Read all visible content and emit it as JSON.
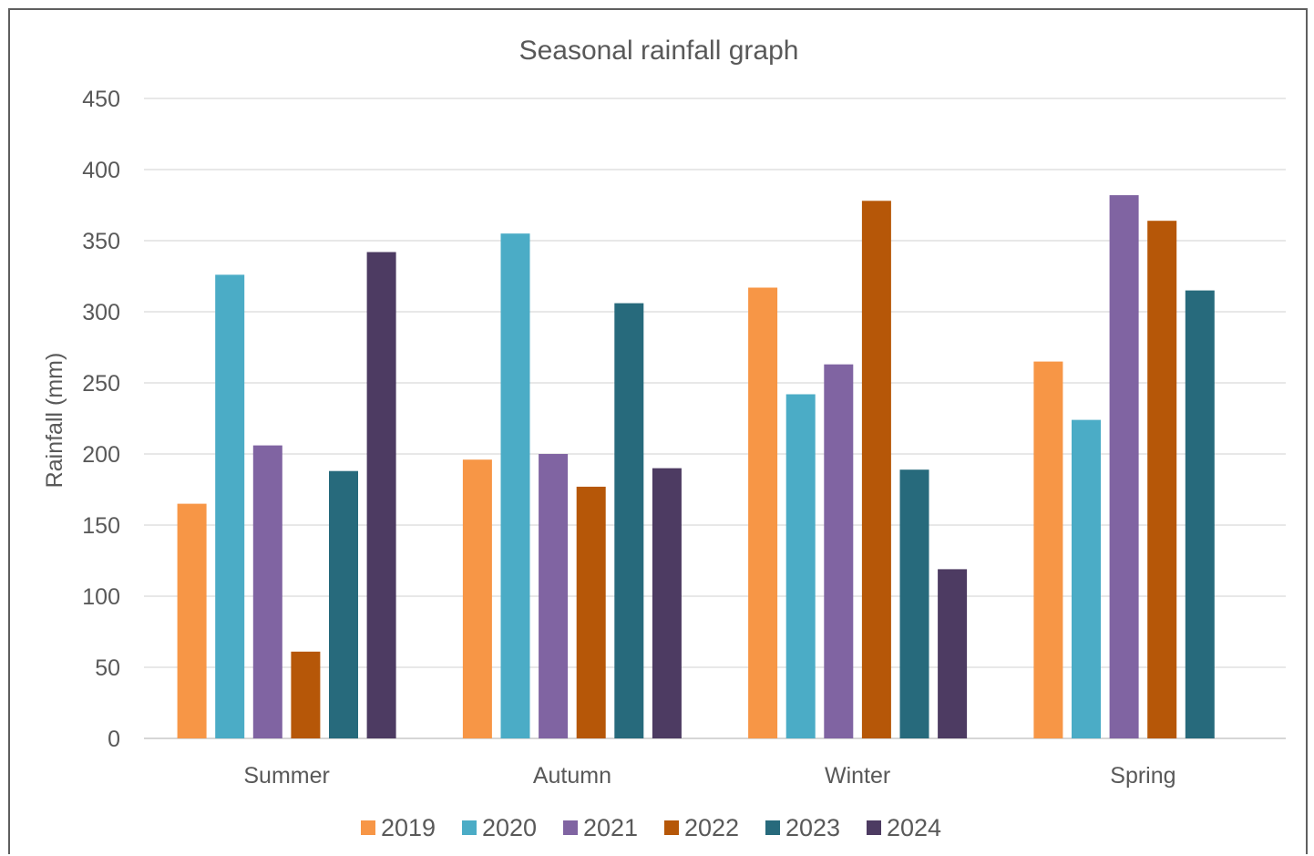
{
  "chart_data": {
    "type": "bar",
    "title": "Seasonal rainfall graph",
    "xlabel": "",
    "ylabel": "Rainfall (mm)",
    "categories": [
      "Summer",
      "Autumn",
      "Winter",
      "Spring"
    ],
    "series": [
      {
        "name": "2019",
        "color": "#f79646",
        "values": [
          165,
          196,
          317,
          265
        ]
      },
      {
        "name": "2020",
        "color": "#4bacc6",
        "values": [
          326,
          355,
          242,
          224
        ]
      },
      {
        "name": "2021",
        "color": "#8064a2",
        "values": [
          206,
          200,
          263,
          382
        ]
      },
      {
        "name": "2022",
        "color": "#b65708",
        "values": [
          61,
          177,
          378,
          364
        ]
      },
      {
        "name": "2023",
        "color": "#276a7c",
        "values": [
          188,
          306,
          189,
          315
        ]
      },
      {
        "name": "2024",
        "color": "#4d3b62",
        "values": [
          342,
          190,
          119,
          null
        ]
      }
    ],
    "ylim": [
      0,
      450
    ],
    "yticks": [
      "0",
      "50",
      "100",
      "150",
      "200",
      "250",
      "300",
      "350",
      "400",
      "450"
    ],
    "grid": true,
    "legend_position": "bottom"
  }
}
